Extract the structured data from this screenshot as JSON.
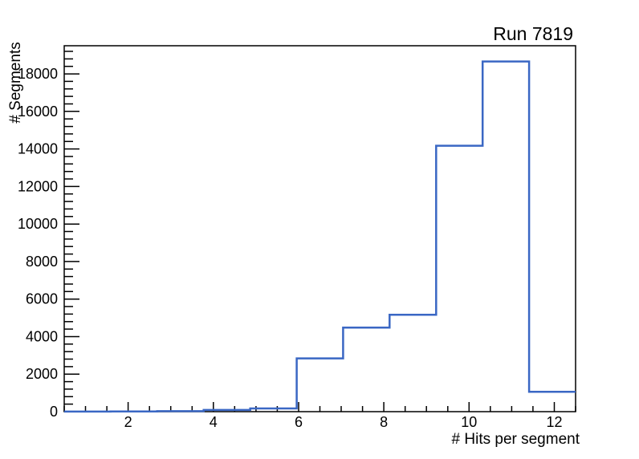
{
  "chart_data": {
    "type": "bar",
    "subtype": "histogram-step",
    "title": "Run 7819",
    "xlabel": "# Hits per segment",
    "ylabel": "# Segments",
    "xlim": [
      0.5,
      12.5
    ],
    "ylim": [
      0,
      19500
    ],
    "xticks_major": [
      2,
      4,
      6,
      8,
      10,
      12
    ],
    "xtick_minor_step": 0.5,
    "yticks_major": [
      0,
      2000,
      4000,
      6000,
      8000,
      10000,
      12000,
      14000,
      16000,
      18000
    ],
    "ytick_minor_step": 400,
    "grid": false,
    "legend": false,
    "line_color": "#3a67c4",
    "frame_color": "#000000",
    "background_color": "#ffffff",
    "bin_edges": [
      0.5,
      1.591,
      2.682,
      3.773,
      4.864,
      5.955,
      7.045,
      8.136,
      9.227,
      10.318,
      11.409,
      12.5
    ],
    "counts": [
      5,
      10,
      25,
      90,
      170,
      2840,
      4480,
      5160,
      14170,
      18660,
      1060
    ]
  }
}
